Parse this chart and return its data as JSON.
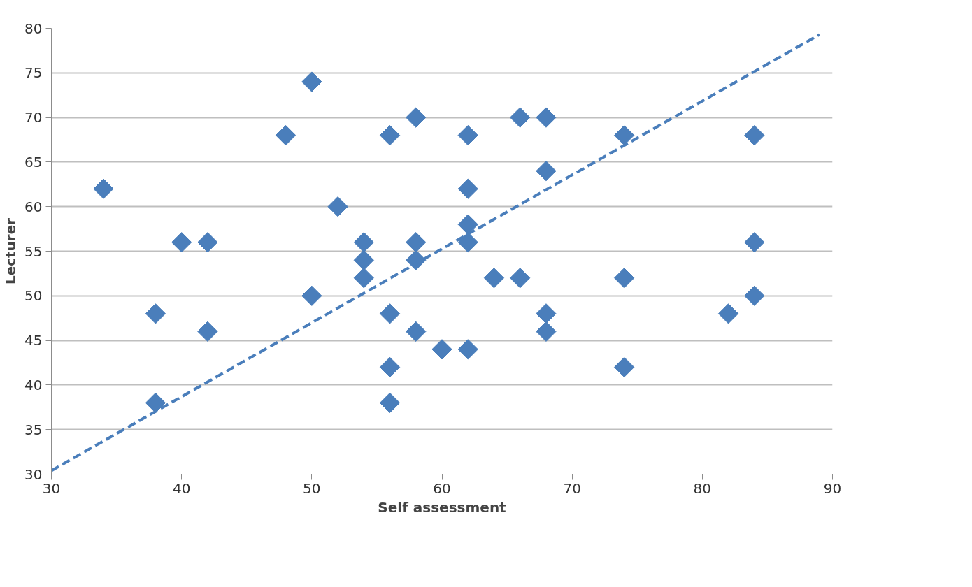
{
  "chart_data": {
    "type": "scatter",
    "xlabel": "Self assessment",
    "ylabel": "Lecturer",
    "xlim": [
      30,
      90
    ],
    "xticks": [
      30,
      40,
      50,
      60,
      70,
      80,
      90
    ],
    "ylim": [
      30,
      80
    ],
    "yticks": [
      30,
      35,
      40,
      45,
      50,
      55,
      60,
      65,
      70,
      75,
      80
    ],
    "grid": "y",
    "marker": "diamond",
    "series": [
      {
        "color": "#4a7ebb",
        "x": [
          34,
          38,
          38,
          40,
          42,
          42,
          48,
          50,
          50,
          52,
          54,
          54,
          54,
          56,
          56,
          56,
          56,
          58,
          58,
          58,
          58,
          60,
          62,
          62,
          62,
          62,
          62,
          64,
          66,
          66,
          68,
          68,
          68,
          68,
          74,
          74,
          74,
          82,
          84,
          84,
          84
        ],
        "values": [
          62,
          48,
          38,
          56,
          56,
          46,
          68,
          74,
          50,
          60,
          56,
          54,
          52,
          68,
          48,
          42,
          38,
          70,
          56,
          54,
          46,
          44,
          68,
          62,
          58,
          56,
          44,
          52,
          70,
          52,
          70,
          64,
          48,
          46,
          68,
          52,
          42,
          48,
          68,
          56,
          50
        ]
      },
      {
        "type": "line",
        "color": "#4a7ebb",
        "line_style": "dashed",
        "marker": "none",
        "x": [
          30,
          89
        ],
        "values": [
          30.4,
          79.3
        ]
      }
    ]
  }
}
